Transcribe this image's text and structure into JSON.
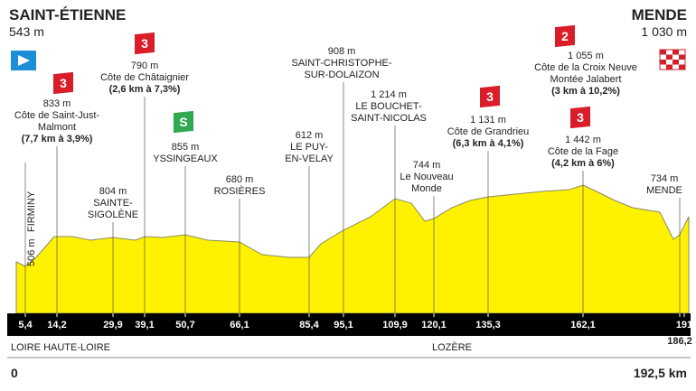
{
  "start": {
    "name": "SAINT-ÉTIENNE",
    "altitude": "543 m"
  },
  "finish": {
    "name": "MENDE",
    "altitude": "1 030 m"
  },
  "points": [
    {
      "km": "5,4",
      "altitude": "506 m",
      "name": [
        "FIRMINY"
      ]
    },
    {
      "km": "14,2",
      "altitude": "833 m",
      "name": [
        "Côte de Saint-Just-",
        "Malmont"
      ],
      "detail": "(7,7 km à 3,9%)",
      "badge": "3"
    },
    {
      "km": "29,9",
      "altitude": "804 m",
      "name": [
        "SAINTE-",
        "SIGOLÈNE"
      ]
    },
    {
      "km": "39,1",
      "altitude": "790 m",
      "name": [
        "Côte de Châtaignier"
      ],
      "detail": "(2,6 km à 7,3%)",
      "badge": "3"
    },
    {
      "km": "50,7",
      "altitude": "855 m",
      "name": [
        "YSSINGEAUX"
      ],
      "badge": "S"
    },
    {
      "km": "66,1",
      "altitude": "680 m",
      "name": [
        "ROSIÈRES"
      ]
    },
    {
      "km": "85,4",
      "altitude": "612 m",
      "name": [
        "LE PUY-",
        "EN-VELAY"
      ]
    },
    {
      "km": "95,1",
      "altitude": "908 m",
      "name": [
        "SAINT-CHRISTOPHE-",
        "SUR-DOLAIZON"
      ]
    },
    {
      "km": "109,9",
      "altitude": "1 214 m",
      "name": [
        "LE BOUCHET-",
        "SAINT-NICOLAS"
      ]
    },
    {
      "km": "120,1",
      "altitude": "744 m",
      "name": [
        "Le Nouveau",
        "Monde"
      ]
    },
    {
      "km": "135,3",
      "altitude": "1 131 m",
      "name": [
        "Côte de Grandrieu"
      ],
      "detail": "(6,3 km à 4,1%)",
      "badge": "3"
    },
    {
      "km": "162,1",
      "altitude": "1 442 m",
      "name": [
        "Côte de la Fage"
      ],
      "detail": "(4,2 km à 6%)",
      "badge": "3"
    },
    {
      "km": "186,2",
      "altitude": "734 m",
      "name": [
        "MENDE"
      ]
    },
    {
      "km": "191",
      "altitude": "1 055 m",
      "name": [
        "Côte de la Croix Neuve",
        "Montée Jalabert"
      ],
      "detail": "(3 km à 10,2%)",
      "badge": "2"
    }
  ],
  "regions": [
    "LOIRE HAUTE-LOIRE",
    "LOZÈRE"
  ],
  "distance_start": "0",
  "distance_end": "192,5 km"
}
